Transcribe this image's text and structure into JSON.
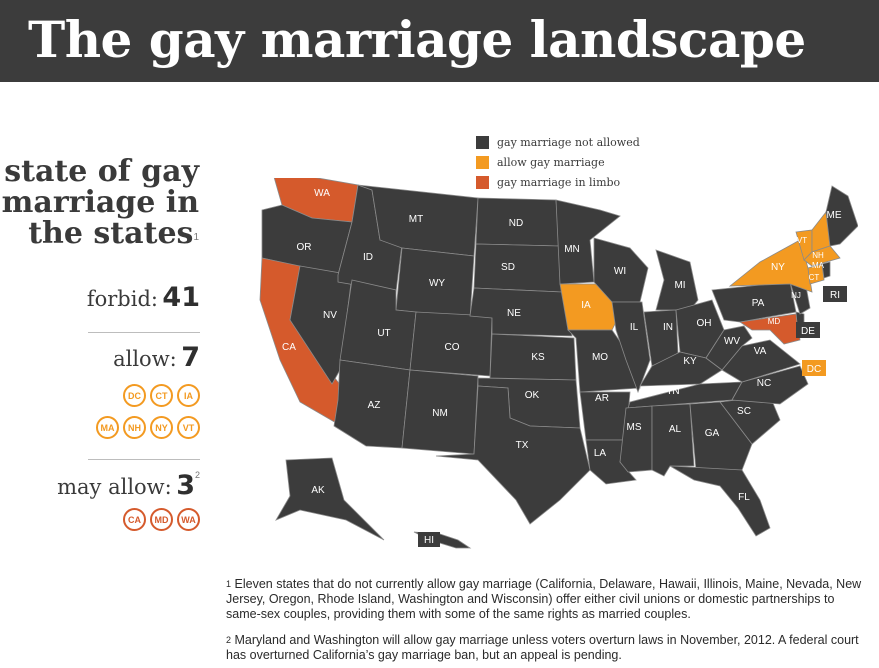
{
  "header": {
    "title": "The gay marriage landscape"
  },
  "sidebar": {
    "heading": "state of gay marriage in the states",
    "heading_note": "1",
    "forbid": {
      "label": "forbid:",
      "value": "41"
    },
    "allow": {
      "label": "allow:",
      "value": "7",
      "states": [
        "DC",
        "CT",
        "IA",
        "MA",
        "NH",
        "NY",
        "VT"
      ]
    },
    "may_allow": {
      "label": "may allow:",
      "value": "3",
      "note": "2",
      "states": [
        "CA",
        "MD",
        "WA"
      ]
    }
  },
  "legend": [
    {
      "label": "gay marriage not allowed",
      "color": "#3c3c3c"
    },
    {
      "label": "allow gay marriage",
      "color": "#f39a21"
    },
    {
      "label": "gay marriage in limbo",
      "color": "#d55a2c"
    }
  ],
  "colors": {
    "not_allowed": "#3c3c3c",
    "allow": "#f39a21",
    "limbo": "#d55a2c",
    "border": "#8a8a8a"
  },
  "map": {
    "state_labels": {
      "WA": "WA",
      "OR": "OR",
      "CA": "CA",
      "NV": "NV",
      "ID": "ID",
      "MT": "MT",
      "WY": "WY",
      "UT": "UT",
      "AZ": "AZ",
      "CO": "CO",
      "NM": "NM",
      "ND": "ND",
      "SD": "SD",
      "NE": "NE",
      "KS": "KS",
      "OK": "OK",
      "TX": "TX",
      "MN": "MN",
      "IA": "IA",
      "MO": "MO",
      "AR": "AR",
      "LA": "LA",
      "WI": "WI",
      "IL": "IL",
      "MI": "MI",
      "IN": "IN",
      "OH": "OH",
      "KY": "KY",
      "TN": "TN",
      "MS": "MS",
      "AL": "AL",
      "GA": "GA",
      "FL": "FL",
      "SC": "SC",
      "NC": "NC",
      "VA": "VA",
      "WV": "WV",
      "PA": "PA",
      "NY": "NY",
      "VT": "VT",
      "NH": "NH",
      "ME": "ME",
      "MA": "MA",
      "CT": "CT",
      "NJ": "NJ",
      "MD": "MD",
      "AK": "AK",
      "HI": "HI",
      "RI": "RI",
      "DE": "DE",
      "DC": "DC"
    }
  },
  "footnotes": [
    {
      "num": "1",
      "text": "Eleven states that do not currently allow gay marriage (California, Delaware, Hawaii, Illinois, Maine, Nevada, New Jersey, Oregon, Rhode Island, Washington and Wisconsin) offer either civil unions or domestic partnerships to same-sex couples, providing them with some of the same rights as married couples."
    },
    {
      "num": "2",
      "text": "Maryland and Washington will allow gay marriage unless voters overturn laws in November, 2012. A federal court has overturned  California’s gay marriage ban, but an appeal is pending."
    }
  ]
}
